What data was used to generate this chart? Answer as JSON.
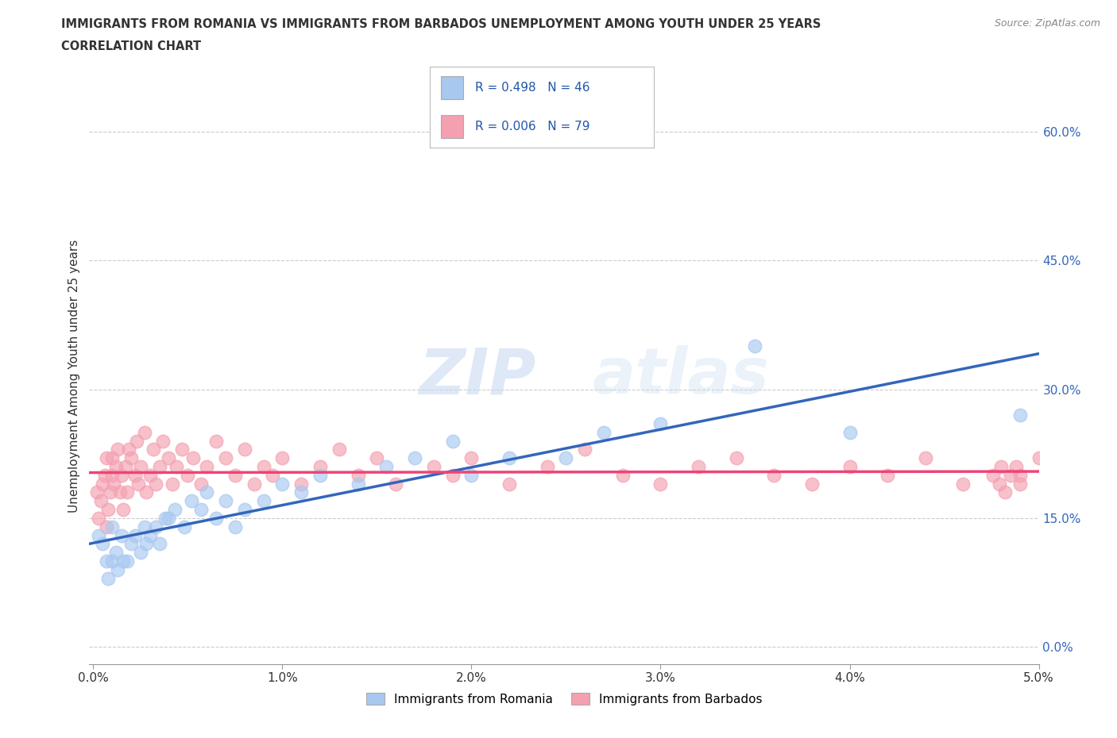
{
  "title_line1": "IMMIGRANTS FROM ROMANIA VS IMMIGRANTS FROM BARBADOS UNEMPLOYMENT AMONG YOUTH UNDER 25 YEARS",
  "title_line2": "CORRELATION CHART",
  "source": "Source: ZipAtlas.com",
  "ylabel": "Unemployment Among Youth under 25 years",
  "xlim": [
    -0.0002,
    0.05
  ],
  "ylim": [
    -0.02,
    0.65
  ],
  "yticks": [
    0.0,
    0.15,
    0.3,
    0.45,
    0.6
  ],
  "ytick_labels": [
    "0.0%",
    "15.0%",
    "30.0%",
    "45.0%",
    "60.0%"
  ],
  "xticks": [
    0.0,
    0.01,
    0.02,
    0.03,
    0.04,
    0.05
  ],
  "xtick_labels": [
    "0.0%",
    "1.0%",
    "2.0%",
    "3.0%",
    "4.0%",
    "5.0%"
  ],
  "romania_color": "#a8c8f0",
  "barbados_color": "#f4a0b0",
  "romania_line_color": "#3366bb",
  "barbados_line_color": "#ee4477",
  "romania_R": 0.498,
  "romania_N": 46,
  "barbados_R": 0.006,
  "barbados_N": 79,
  "watermark_zip": "ZIP",
  "watermark_atlas": "atlas",
  "background_color": "#ffffff",
  "grid_color": "#cccccc",
  "romania_x": [
    0.0003,
    0.0005,
    0.0007,
    0.0008,
    0.001,
    0.001,
    0.0012,
    0.0013,
    0.0015,
    0.0016,
    0.0018,
    0.002,
    0.0022,
    0.0025,
    0.0027,
    0.0028,
    0.003,
    0.0033,
    0.0035,
    0.0038,
    0.004,
    0.0043,
    0.0048,
    0.0052,
    0.0057,
    0.006,
    0.0065,
    0.007,
    0.0075,
    0.008,
    0.009,
    0.01,
    0.011,
    0.012,
    0.014,
    0.0155,
    0.017,
    0.019,
    0.02,
    0.022,
    0.025,
    0.027,
    0.03,
    0.035,
    0.04,
    0.049
  ],
  "romania_y": [
    0.13,
    0.12,
    0.1,
    0.08,
    0.14,
    0.1,
    0.11,
    0.09,
    0.13,
    0.1,
    0.1,
    0.12,
    0.13,
    0.11,
    0.14,
    0.12,
    0.13,
    0.14,
    0.12,
    0.15,
    0.15,
    0.16,
    0.14,
    0.17,
    0.16,
    0.18,
    0.15,
    0.17,
    0.14,
    0.16,
    0.17,
    0.19,
    0.18,
    0.2,
    0.19,
    0.21,
    0.22,
    0.24,
    0.2,
    0.22,
    0.22,
    0.25,
    0.26,
    0.35,
    0.25,
    0.27
  ],
  "barbados_x": [
    0.0002,
    0.0003,
    0.0004,
    0.0005,
    0.0006,
    0.0007,
    0.0007,
    0.0008,
    0.0009,
    0.001,
    0.001,
    0.0011,
    0.0012,
    0.0013,
    0.0014,
    0.0015,
    0.0016,
    0.0017,
    0.0018,
    0.0019,
    0.002,
    0.0022,
    0.0023,
    0.0024,
    0.0025,
    0.0027,
    0.0028,
    0.003,
    0.0032,
    0.0033,
    0.0035,
    0.0037,
    0.004,
    0.0042,
    0.0044,
    0.0047,
    0.005,
    0.0053,
    0.0057,
    0.006,
    0.0065,
    0.007,
    0.0075,
    0.008,
    0.0085,
    0.009,
    0.0095,
    0.01,
    0.011,
    0.012,
    0.013,
    0.014,
    0.015,
    0.016,
    0.018,
    0.019,
    0.02,
    0.022,
    0.024,
    0.026,
    0.028,
    0.03,
    0.032,
    0.034,
    0.036,
    0.038,
    0.04,
    0.042,
    0.044,
    0.046,
    0.048,
    0.049,
    0.05,
    0.049,
    0.0488,
    0.0485,
    0.0482,
    0.0479,
    0.0476
  ],
  "barbados_y": [
    0.18,
    0.15,
    0.17,
    0.19,
    0.2,
    0.14,
    0.22,
    0.16,
    0.18,
    0.2,
    0.22,
    0.19,
    0.21,
    0.23,
    0.18,
    0.2,
    0.16,
    0.21,
    0.18,
    0.23,
    0.22,
    0.2,
    0.24,
    0.19,
    0.21,
    0.25,
    0.18,
    0.2,
    0.23,
    0.19,
    0.21,
    0.24,
    0.22,
    0.19,
    0.21,
    0.23,
    0.2,
    0.22,
    0.19,
    0.21,
    0.24,
    0.22,
    0.2,
    0.23,
    0.19,
    0.21,
    0.2,
    0.22,
    0.19,
    0.21,
    0.23,
    0.2,
    0.22,
    0.19,
    0.21,
    0.2,
    0.22,
    0.19,
    0.21,
    0.23,
    0.2,
    0.19,
    0.21,
    0.22,
    0.2,
    0.19,
    0.21,
    0.2,
    0.22,
    0.19,
    0.21,
    0.2,
    0.22,
    0.19,
    0.21,
    0.2,
    0.18,
    0.19,
    0.2
  ]
}
